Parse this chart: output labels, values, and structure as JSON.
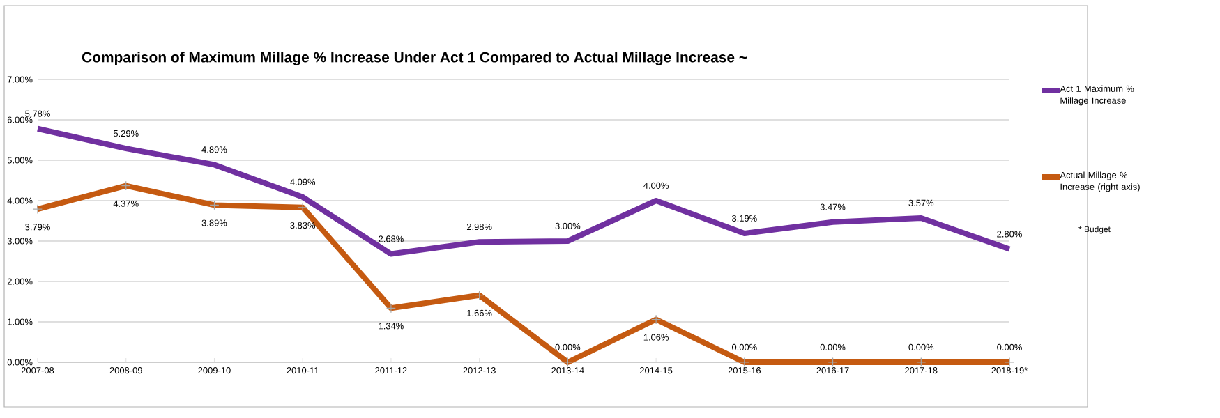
{
  "chart_data": {
    "type": "line",
    "title": "Comparison of Maximum Millage % Increase Under Act 1 Compared to Actual Millage Increase ~",
    "categories": [
      "2007-08",
      "2008-09",
      "2009-10",
      "2010-11",
      "2011-12",
      "2012-13",
      "2013-14",
      "2014-15",
      "2015-16",
      "2016-17",
      "2017-18",
      "2018-19*"
    ],
    "series": [
      {
        "name": "Act 1 Maximum % Millage Increase",
        "color": "#7030a0",
        "values": [
          5.78,
          5.29,
          4.89,
          4.09,
          2.68,
          2.98,
          3.0,
          4.0,
          3.19,
          3.47,
          3.57,
          2.8
        ],
        "value_labels": [
          "5.78%",
          "5.29%",
          "4.89%",
          "4.09%",
          "2.68%",
          "2.98%",
          "3.00%",
          "4.00%",
          "3.19%",
          "3.47%",
          "3.57%",
          "2.80%"
        ]
      },
      {
        "name": "Actual Millage % Increase (right axis)",
        "color": "#c55a11",
        "marker": "cross",
        "values": [
          3.79,
          4.37,
          3.89,
          3.83,
          1.34,
          1.66,
          0.0,
          1.06,
          0.0,
          0.0,
          0.0,
          0.0
        ],
        "value_labels": [
          "3.79%",
          "4.37%",
          "3.89%",
          "3.83%",
          "1.34%",
          "1.66%",
          "0.00%",
          "1.06%",
          "0.00%",
          "0.00%",
          "0.00%",
          "0.00%"
        ]
      }
    ],
    "ylim": [
      0,
      7
    ],
    "yticks": [
      {
        "value": 0,
        "label": "0.00%"
      },
      {
        "value": 1,
        "label": "1.00%"
      },
      {
        "value": 2,
        "label": "2.00%"
      },
      {
        "value": 3,
        "label": "3.00%"
      },
      {
        "value": 4,
        "label": "4.00%"
      },
      {
        "value": 5,
        "label": "5.00%"
      },
      {
        "value": 6,
        "label": "6.00%"
      },
      {
        "value": 7,
        "label": "7.00%"
      }
    ],
    "grid": "y",
    "legend": "right",
    "annotations": [
      "* Budget"
    ]
  }
}
